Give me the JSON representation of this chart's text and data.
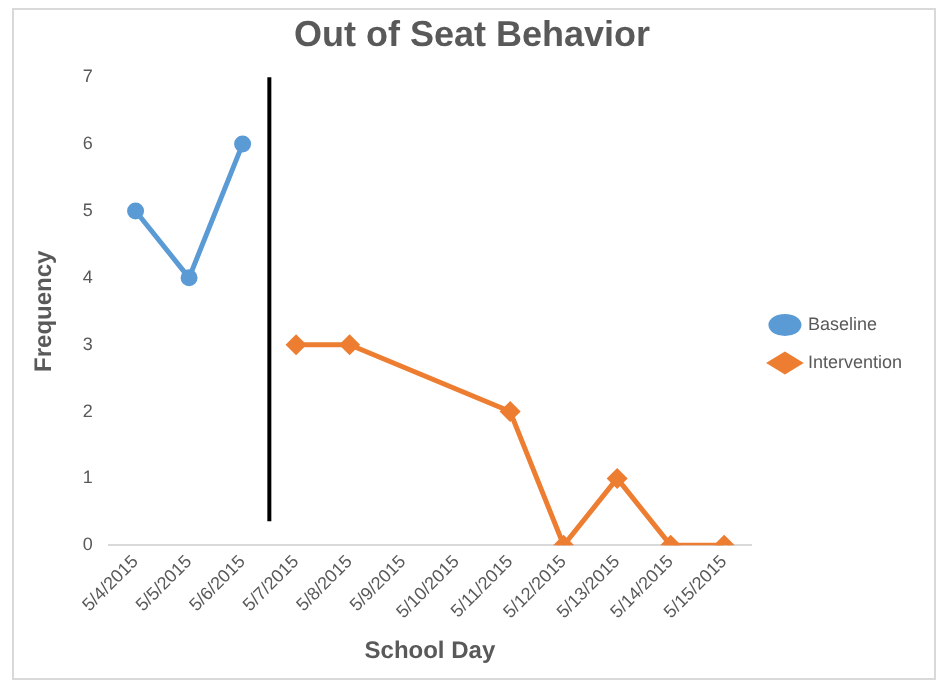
{
  "chart_data": {
    "type": "line",
    "title": "Out of Seat Behavior",
    "xlabel": "School Day",
    "ylabel": "Frequency",
    "xlim": [
      "2015-05-03T12:00",
      "2015-05-15T12:00"
    ],
    "xticks": [
      {
        "value": "2015-05-04",
        "label": "5/4/2015"
      },
      {
        "value": "2015-05-05",
        "label": "5/5/2015"
      },
      {
        "value": "2015-05-06",
        "label": "5/6/2015"
      },
      {
        "value": "2015-05-07",
        "label": "5/7/2015"
      },
      {
        "value": "2015-05-08",
        "label": "5/8/2015"
      },
      {
        "value": "2015-05-09",
        "label": "5/9/2015"
      },
      {
        "value": "2015-05-10",
        "label": "5/10/2015"
      },
      {
        "value": "2015-05-11",
        "label": "5/11/2015"
      },
      {
        "value": "2015-05-12",
        "label": "5/12/2015"
      },
      {
        "value": "2015-05-13",
        "label": "5/13/2015"
      },
      {
        "value": "2015-05-14",
        "label": "5/14/2015"
      },
      {
        "value": "2015-05-15",
        "label": "5/15/2015"
      }
    ],
    "ylim": [
      0,
      7
    ],
    "yticks": [
      0,
      1,
      2,
      3,
      4,
      5,
      6,
      7
    ],
    "grid": false,
    "legend": "right",
    "series": [
      {
        "name": "Baseline",
        "color": "#5b9bd5",
        "marker": "circle",
        "x": [
          "2015-05-04",
          "2015-05-05",
          "2015-05-06"
        ],
        "values": [
          5,
          4,
          6
        ]
      },
      {
        "name": "Intervention",
        "color": "#ed7d31",
        "marker": "diamond",
        "x": [
          "2015-05-07",
          "2015-05-08",
          "2015-05-11",
          "2015-05-12",
          "2015-05-13",
          "2015-05-14",
          "2015-05-15"
        ],
        "values": [
          3,
          3,
          2,
          0,
          1,
          0,
          0
        ]
      }
    ],
    "ref_lines": [
      {
        "axis": "x",
        "value": "2015-05-06T12:00",
        "color": "#000000"
      }
    ]
  }
}
